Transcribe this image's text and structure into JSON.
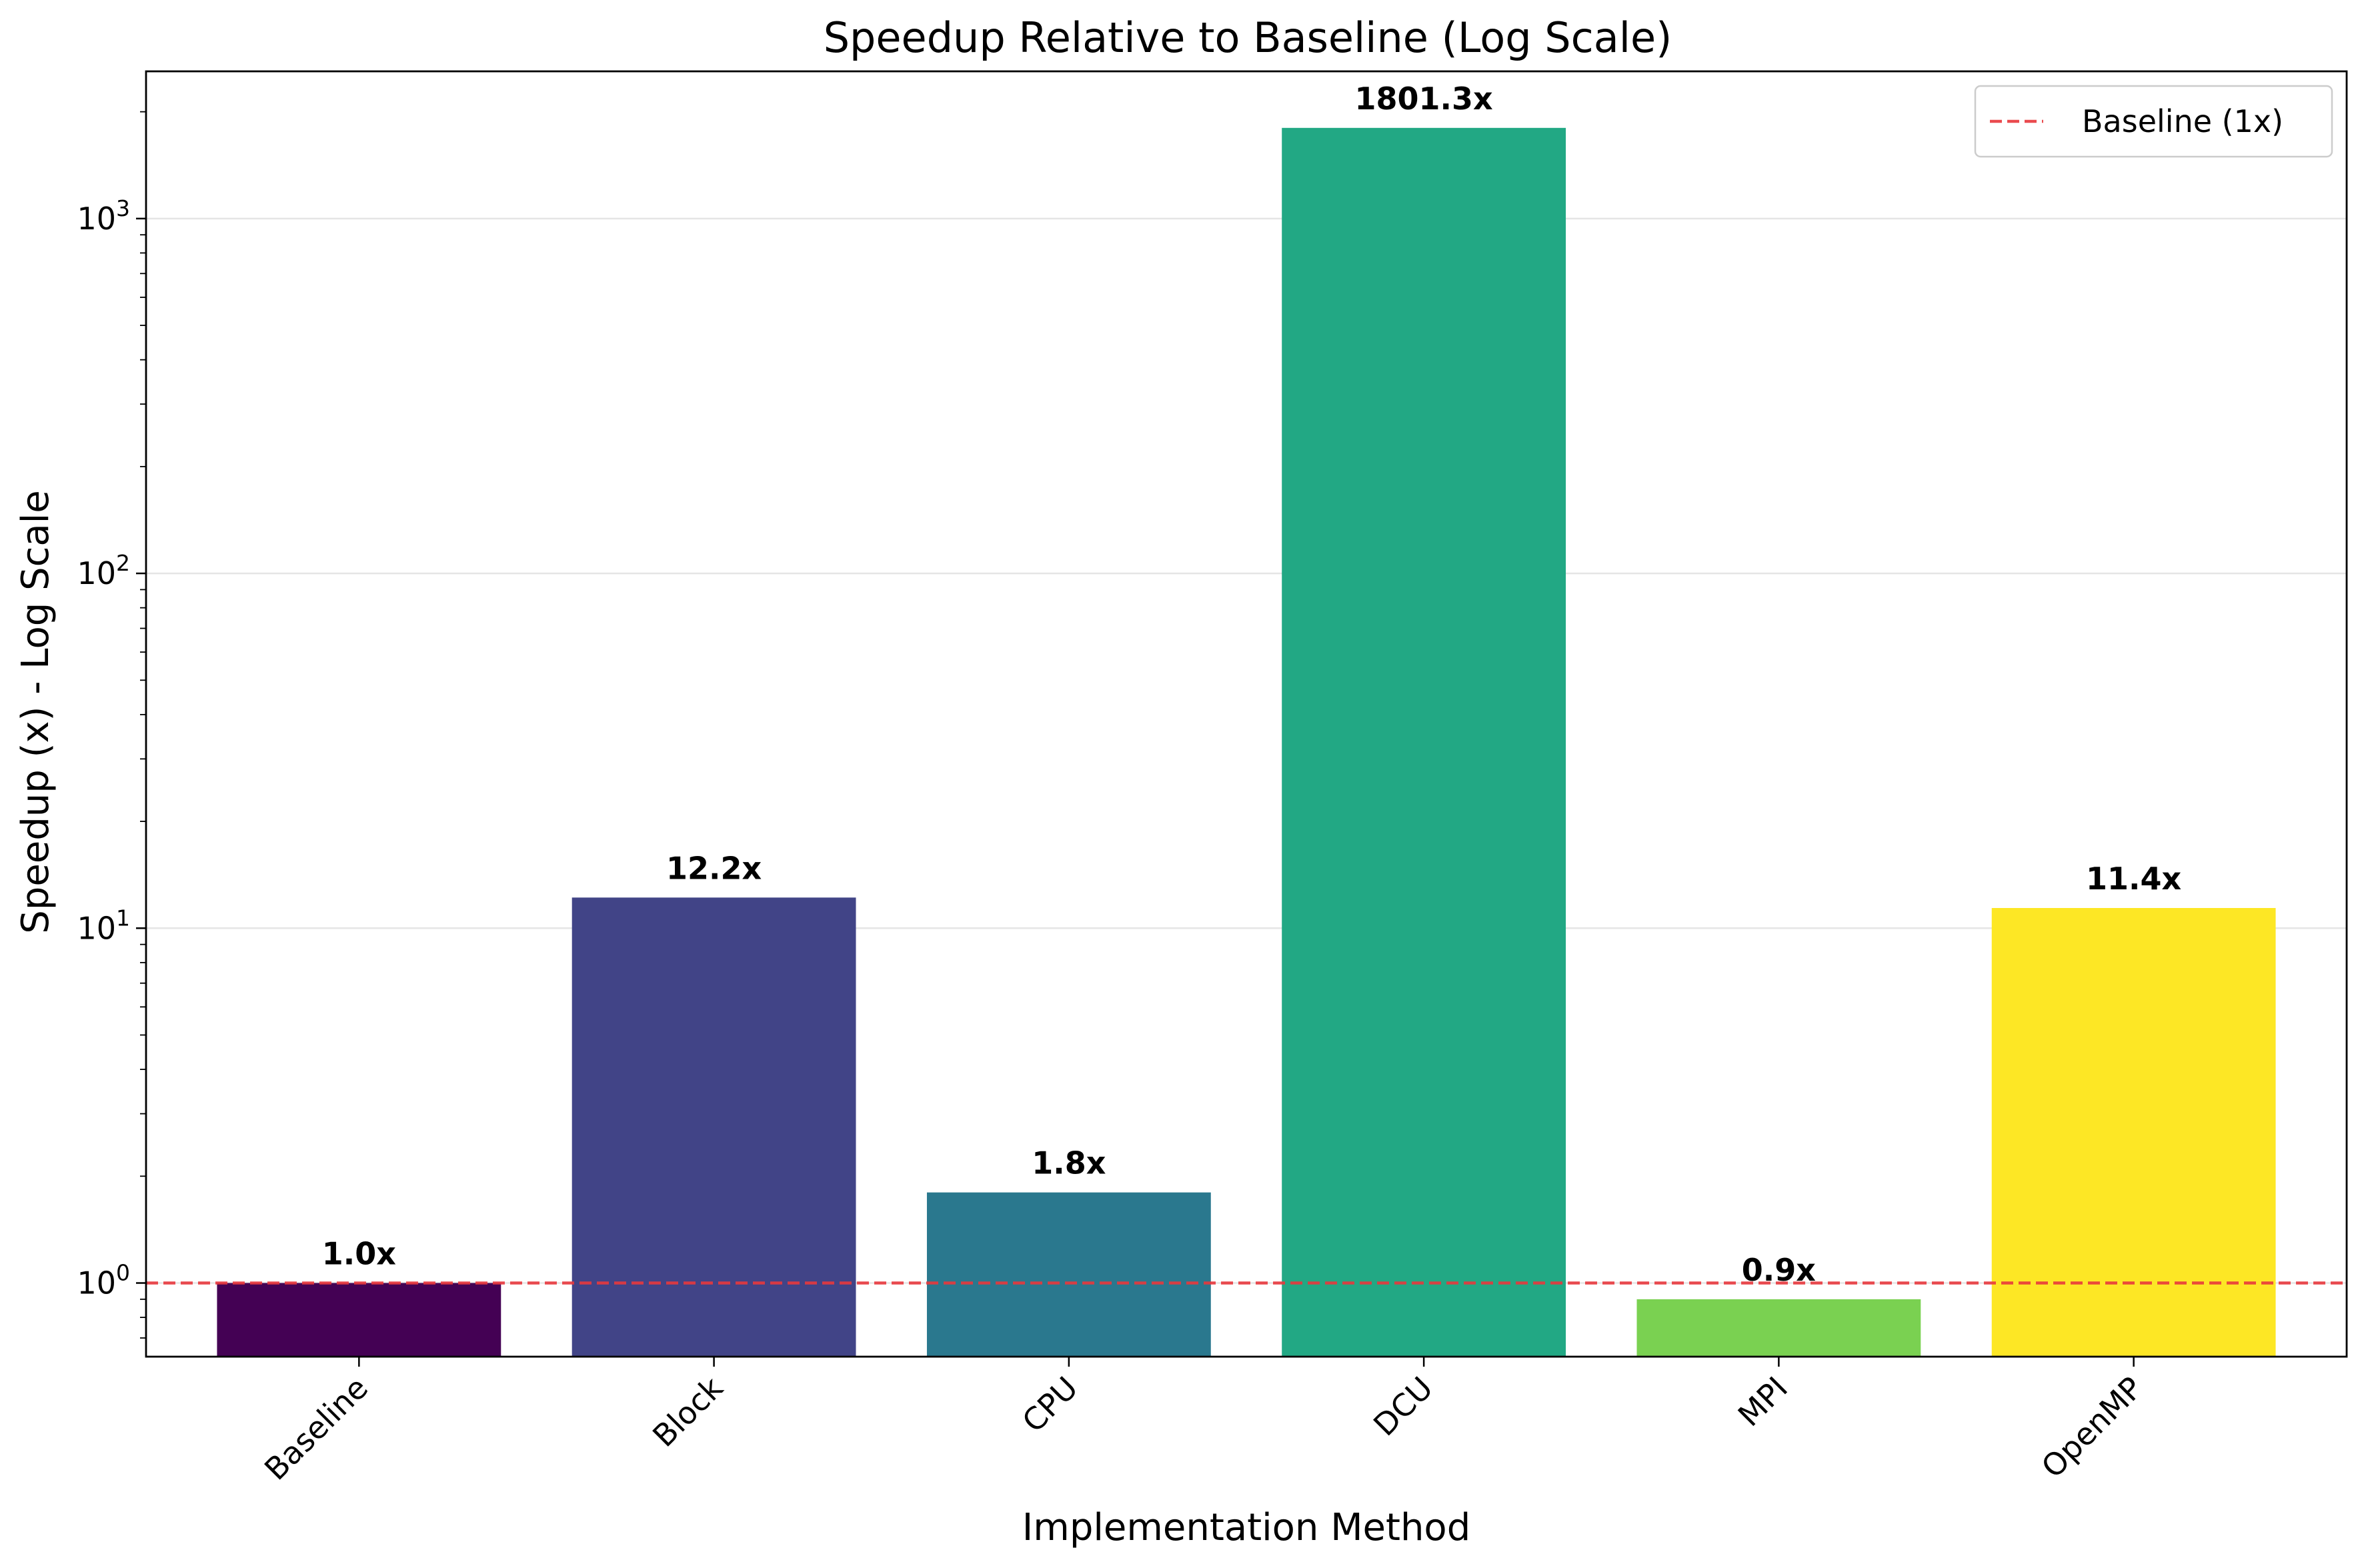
{
  "chart_data": {
    "type": "bar",
    "title": "Speedup Relative to Baseline (Log Scale)",
    "xlabel": "Implementation Method",
    "ylabel": "Speedup (x) - Log Scale",
    "yscale": "log",
    "ylim": [
      0.62,
      2600
    ],
    "yticks": [
      {
        "value": 1,
        "base": "10",
        "exp": "0"
      },
      {
        "value": 10,
        "base": "10",
        "exp": "1"
      },
      {
        "value": 100,
        "base": "10",
        "exp": "2"
      },
      {
        "value": 1000,
        "base": "10",
        "exp": "3"
      }
    ],
    "grid": "horizontal major",
    "categories": [
      "Baseline",
      "Block",
      "CPU",
      "DCU",
      "MPI",
      "OpenMP"
    ],
    "values": [
      1.0,
      12.2,
      1.8,
      1801.3,
      0.9,
      11.4
    ],
    "value_labels": [
      "1.0x",
      "12.2x",
      "1.8x",
      "1801.3x",
      "0.9x",
      "11.4x"
    ],
    "colors": [
      "#440154",
      "#414487",
      "#2a788e",
      "#22a884",
      "#7ad151",
      "#fde725"
    ],
    "reference_line": {
      "value": 1,
      "label": "Baseline (1x)",
      "color": "#e8383d",
      "style": "dashed"
    },
    "legend": {
      "position": "top-right"
    }
  }
}
